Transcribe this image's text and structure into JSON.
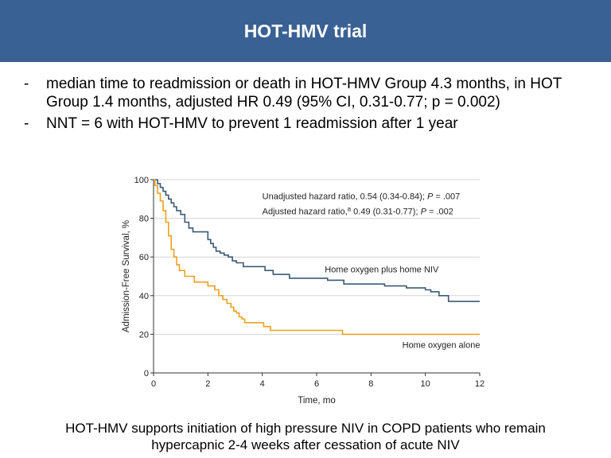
{
  "header": {
    "title": "HOT-HMV trial"
  },
  "bullets": [
    {
      "marker": "-",
      "text": "median time to readmission or death in HOT-HMV Group 4.3 months, in HOT Group 1.4 months, adjusted HR 0.49 (95% CI, 0.31-0.77; p = 0.002)"
    },
    {
      "marker": "-",
      "text": "NNT = 6 with HOT-HMV to prevent 1 readmission after 1 year"
    }
  ],
  "footer": {
    "line1": "HOT-HMV supports initiation of high pressure NIV in COPD patients who remain",
    "line2": "hypercapnic 2-4 weeks after cessation of acute NIV"
  },
  "chart_data": {
    "type": "line",
    "step": true,
    "title": "",
    "xlabel": "Time, mo",
    "ylabel": "Admission-Free Survival, %",
    "xlim": [
      0,
      12
    ],
    "ylim": [
      0,
      100
    ],
    "xticks": [
      0,
      2,
      4,
      6,
      8,
      10,
      12
    ],
    "yticks": [
      0,
      20,
      40,
      60,
      80,
      100
    ],
    "grid": true,
    "annotations": [
      {
        "text": "Unadjusted hazard ratio, 0.54 (0.34-0.84); ",
        "italic": "P",
        "suffix": " = .007"
      },
      {
        "text": "Adjusted hazard ratio,",
        "superscript": "a",
        "mid": " 0.49 (0.31-0.77); ",
        "italic": "P",
        "suffix": " = .002"
      }
    ],
    "series": [
      {
        "name": "Home oxygen plus home NIV",
        "color": "#3d5a73",
        "x": [
          0,
          0.15,
          0.25,
          0.35,
          0.45,
          0.55,
          0.65,
          0.75,
          0.85,
          1.0,
          1.15,
          1.3,
          1.45,
          2.0,
          2.1,
          2.2,
          2.3,
          2.45,
          2.6,
          2.75,
          2.9,
          3.05,
          3.3,
          3.5,
          3.7,
          4.1,
          4.4,
          5.0,
          6.4,
          7.0,
          8.5,
          8.75,
          9.3,
          9.5,
          10.0,
          10.2,
          10.5,
          10.85,
          12.0
        ],
        "y": [
          100,
          98,
          96,
          94,
          92,
          90,
          88,
          86,
          84,
          82,
          78,
          75,
          73,
          69,
          67,
          65,
          63,
          62,
          61,
          60,
          58,
          57,
          55,
          55,
          55,
          53,
          51,
          49,
          48,
          46,
          45,
          45,
          44,
          44,
          43,
          42,
          40,
          37,
          37
        ]
      },
      {
        "name": "Home oxygen alone",
        "color": "#f0a020",
        "x": [
          0,
          0.05,
          0.15,
          0.25,
          0.35,
          0.45,
          0.55,
          0.65,
          0.75,
          0.85,
          0.95,
          1.15,
          1.5,
          2.0,
          2.25,
          2.4,
          2.55,
          2.7,
          2.85,
          2.95,
          3.05,
          3.15,
          3.25,
          3.35,
          3.5,
          3.75,
          4.05,
          4.3,
          5.0,
          6.95,
          12.0
        ],
        "y": [
          100,
          97,
          93,
          89,
          84,
          78,
          71,
          64,
          60,
          56,
          53,
          50,
          47,
          45,
          43,
          40,
          38,
          36,
          34,
          32,
          31,
          29,
          28,
          26,
          26,
          26,
          24,
          22,
          22,
          20,
          20
        ]
      }
    ]
  }
}
